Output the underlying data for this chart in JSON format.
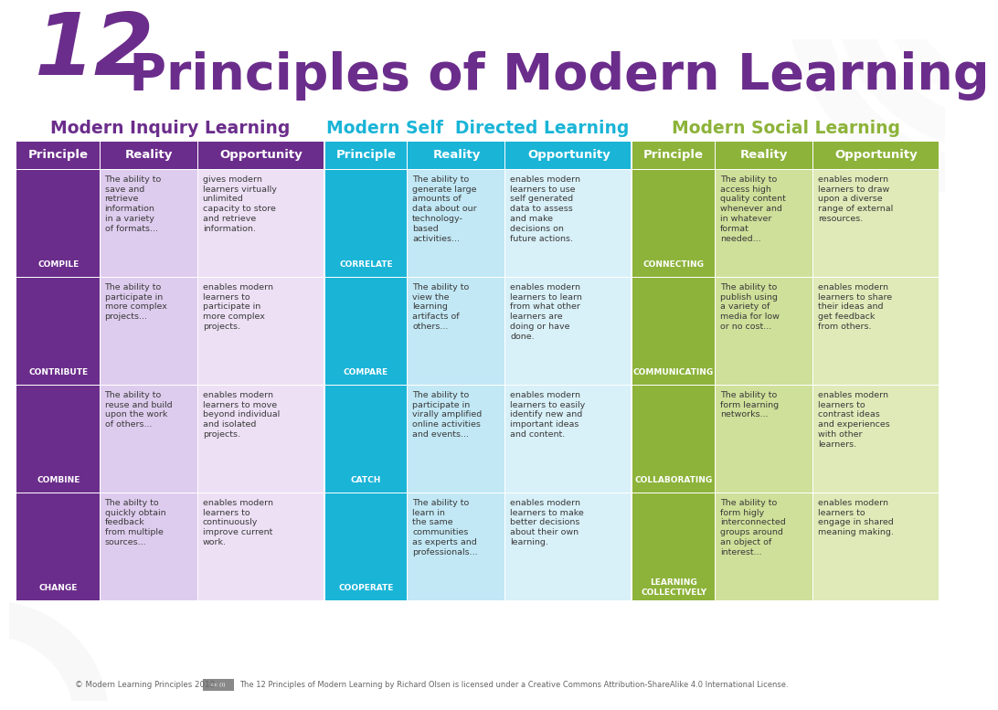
{
  "title_num": "12",
  "title_rest": " Principles of Modern Learning",
  "title_color": "#6b2d8b",
  "bg_color": "#ffffff",
  "section_titles": [
    "Modern Inquiry Learning",
    "Modern Self  Directed Learning",
    "Modern Social Learning"
  ],
  "col_headers": [
    "Principle",
    "Reality",
    "Opportunity"
  ],
  "inquiry_color": "#6b2d8b",
  "inquiry_light": "#deccee",
  "inquiry_lighter": "#ede0f5",
  "self_color": "#1ab4d7",
  "self_light": "#c2e8f5",
  "self_lighter": "#d8f0f8",
  "social_color": "#8db33a",
  "social_light": "#cfe09a",
  "social_lighter": "#dfeab8",
  "text_color": "#3a3a3a",
  "white": "#ffffff",
  "rows": [
    {
      "inq_p": "COMPILE",
      "inq_r": "The ability to\nsave and\nretrieve\ninformation\nin a variety\nof formats...",
      "inq_o": "gives modern\nlearners virtually\nunlimited\ncapacity to store\nand retrieve\ninformation.",
      "sel_p": "CORRELATE",
      "sel_r": "The ability to\ngenerate large\namounts of\ndata about our\ntechnology-\nbased\nactivities...",
      "sel_o": "enables modern\nlearners to use\nself generated\ndata to assess\nand make\ndecisions on\nfuture actions.",
      "soc_p": "CONNECTING",
      "soc_r": "The ability to\naccess high\nquality content\nwhenever and\nin whatever\nformat\nneeded...",
      "soc_o": "enables modern\nlearners to draw\nupon a diverse\nrange of external\nresources."
    },
    {
      "inq_p": "CONTRIBUTE",
      "inq_r": "The ability to\nparticipate in\nmore complex\nprojects...",
      "inq_o": "enables modern\nlearners to\nparticipate in\nmore complex\nprojects.",
      "sel_p": "COMPARE",
      "sel_r": "The ability to\nview the\nlearning\nartifacts of\nothers...",
      "sel_o": "enables modern\nlearners to learn\nfrom what other\nlearners are\ndoing or have\ndone.",
      "soc_p": "COMMUNICATING",
      "soc_r": "The ability to\npublish using\na variety of\nmedia for low\nor no cost...",
      "soc_o": "enables modern\nlearners to share\ntheir ideas and\nget feedback\nfrom others."
    },
    {
      "inq_p": "COMBINE",
      "inq_r": "The ability to\nreuse and build\nupon the work\nof others...",
      "inq_o": "enables modern\nlearners to move\nbeyond individual\nand isolated\nprojects.",
      "sel_p": "CATCH",
      "sel_r": "The ability to\nparticipate in\nvirally amplified\nonline activities\nand events...",
      "sel_o": "enables modern\nlearners to easily\nidentify new and\nimportant ideas\nand content.",
      "soc_p": "COLLABORATING",
      "soc_r": "The ability to\nform learning\nnetworks...",
      "soc_o": "enables modern\nlearners to\ncontrast ideas\nand experiences\nwith other\nlearners."
    },
    {
      "inq_p": "CHANGE",
      "inq_r": "The abilty to\nquickly obtain\nfeedback\nfrom multiple\nsources...",
      "inq_o": "enables modern\nlearners to\ncontinuously\nimprove current\nwork.",
      "sel_p": "COOPERATE",
      "sel_r": "The ability to\nlearn in\nthe same\ncommunities\nas experts and\nprofessionals...",
      "sel_o": "enables modern\nlearners to make\nbetter decisions\nabout their own\nlearning.",
      "soc_p": "LEARNING\nCOLLECTIVELY",
      "soc_r": "The ability to\nform higly\ninterconnected\ngroups around\nan object of\ninterest...",
      "soc_o": "enables modern\nlearners to\nengage in shared\nmeaning making."
    }
  ],
  "footer1": "© Modern Learning Principles 2013",
  "footer2": "The 12 Principles of Modern Learning by Richard Olsen is licensed under a Creative Commons Attribution-ShareAlike 4.0 International License."
}
